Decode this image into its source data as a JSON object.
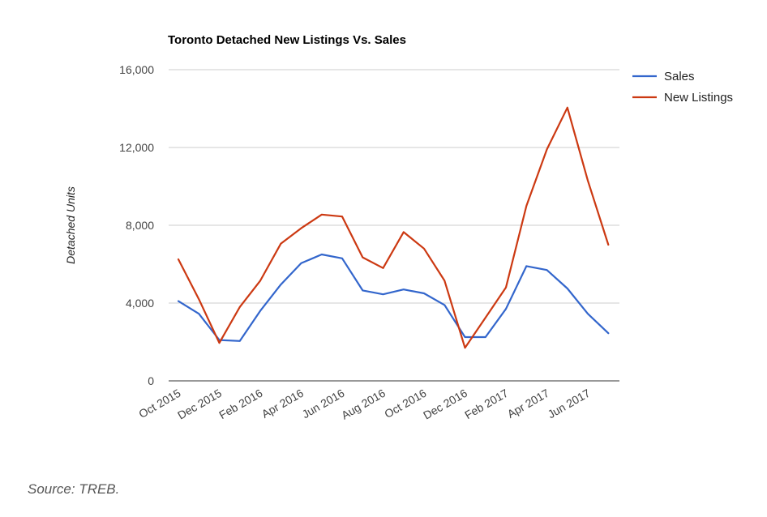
{
  "source_text": "Source: TREB.",
  "chart_data": {
    "type": "line",
    "title": "Toronto Detached New Listings Vs. Sales",
    "xlabel": "",
    "ylabel": "Detached Units",
    "ylim": [
      0,
      16000
    ],
    "yticks": [
      0,
      4000,
      8000,
      12000,
      16000
    ],
    "ytick_labels": [
      "0",
      "4,000",
      "8,000",
      "12,000",
      "16,000"
    ],
    "grid": true,
    "legend_position": "right",
    "x": [
      "Oct 2015",
      "Nov 2015",
      "Dec 2015",
      "Jan 2016",
      "Feb 2016",
      "Mar 2016",
      "Apr 2016",
      "May 2016",
      "Jun 2016",
      "Jul 2016",
      "Aug 2016",
      "Sep 2016",
      "Oct 2016",
      "Nov 2016",
      "Dec 2016",
      "Jan 2017",
      "Feb 2017",
      "Mar 2017",
      "Apr 2017",
      "May 2017",
      "Jun 2017",
      "Jul 2017"
    ],
    "x_tick_labels": [
      "Oct 2015",
      "Dec 2015",
      "Feb 2016",
      "Apr 2016",
      "Jun 2016",
      "Aug 2016",
      "Oct 2016",
      "Dec 2016",
      "Feb 2017",
      "Apr 2017",
      "Jun 2017"
    ],
    "series": [
      {
        "name": "Sales",
        "color": "#3366cc",
        "values": [
          4100,
          3450,
          2100,
          2050,
          3600,
          4950,
          6050,
          6500,
          6300,
          4650,
          4450,
          4700,
          4500,
          3900,
          2250,
          2250,
          3700,
          5900,
          5700,
          4750,
          3450,
          2450
        ]
      },
      {
        "name": "New Listings",
        "color": "#cc3912",
        "values": [
          6250,
          4200,
          1950,
          3800,
          5150,
          7050,
          7850,
          8550,
          8450,
          6350,
          5800,
          7650,
          6800,
          5150,
          1700,
          3250,
          4800,
          9000,
          11900,
          14050,
          10300,
          7000
        ]
      }
    ]
  }
}
